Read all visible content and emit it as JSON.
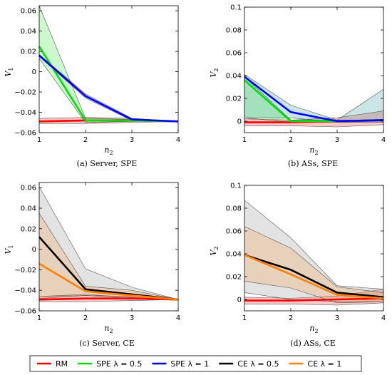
{
  "chart_data": [
    {
      "type": "line",
      "caption": "(a) Server, SPE",
      "xlabel": "n2",
      "ylabel": "V1",
      "x": [
        1,
        2,
        3,
        4
      ],
      "xticks": [
        "1",
        "2",
        "3",
        "4"
      ],
      "ylim": [
        -0.06,
        0.065
      ],
      "yticks": [
        -0.06,
        -0.04,
        -0.02,
        0,
        0.02,
        0.04,
        0.06
      ],
      "ytick_labels": [
        "−0.06",
        "−0.04",
        "−0.02",
        "0",
        "0.02",
        "0.04",
        "0.06"
      ],
      "series": [
        {
          "name": "RM",
          "color": "#ff0000",
          "values": [
            -0.049,
            -0.048,
            -0.048,
            -0.049
          ],
          "band": {
            "upper": [
              -0.046,
              -0.045,
              -0.046,
              -0.049
            ],
            "lower": [
              -0.051,
              -0.051,
              -0.05,
              -0.049
            ],
            "fill": "#ff0000",
            "opacity": 0.22
          }
        },
        {
          "name": "SPE λ = 0.5",
          "color": "#00e000",
          "values": [
            0.025,
            -0.048,
            -0.048,
            -0.049
          ],
          "band": {
            "upper": [
              0.065,
              -0.046,
              -0.047,
              -0.049
            ],
            "lower": [
              0.013,
              -0.05,
              -0.049,
              -0.049
            ],
            "fill": "#00e000",
            "opacity": 0.2
          }
        },
        {
          "name": "SPE λ = 1",
          "color": "#0000ff",
          "values": [
            0.016,
            -0.024,
            -0.047,
            -0.049
          ],
          "band": {
            "upper": [
              0.017,
              -0.022,
              -0.046,
              -0.049
            ],
            "lower": [
              0.015,
              -0.026,
              -0.048,
              -0.049
            ],
            "fill": "#0000ff",
            "opacity": 0.2
          }
        }
      ]
    },
    {
      "type": "line",
      "caption": "(b) ASs, SPE",
      "xlabel": "n2",
      "ylabel": "V2",
      "x": [
        1,
        2,
        3,
        4
      ],
      "xticks": [
        "1",
        "2",
        "3",
        "4"
      ],
      "ylim": [
        -0.01,
        0.1
      ],
      "yticks": [
        0,
        0.02,
        0.04,
        0.06,
        0.08,
        0.1
      ],
      "ytick_labels": [
        "0",
        "0.02",
        "0.04",
        "0.06",
        "0.08",
        "0.1"
      ],
      "series": [
        {
          "name": "RM",
          "color": "#ff0000",
          "values": [
            -0.001,
            -0.001,
            0.0,
            0.001
          ],
          "band": {
            "upper": [
              0.002,
              0.001,
              0.003,
              0.009
            ],
            "lower": [
              -0.004,
              -0.004,
              -0.005,
              -0.003
            ],
            "fill": "#ff0000",
            "opacity": 0.22
          }
        },
        {
          "name": "SPE λ = 0.5",
          "color": "#00e000",
          "values": [
            0.036,
            0.0,
            0.0,
            0.001
          ],
          "band": {
            "upper": [
              0.039,
              0.001,
              0.001,
              0.001
            ],
            "lower": [
              0.003,
              -0.001,
              -0.001,
              0.0
            ],
            "fill": "#00e000",
            "opacity": 0.2
          }
        },
        {
          "name": "SPE λ = 1",
          "color": "#0000ff",
          "values": [
            0.039,
            0.008,
            0.0,
            0.001
          ],
          "band": {
            "upper": [
              0.041,
              0.014,
              0.001,
              0.028
            ],
            "lower": [
              0.003,
              0.003,
              -0.001,
              -0.001
            ],
            "fill": "#0e8a8f",
            "opacity": 0.22
          }
        }
      ]
    },
    {
      "type": "line",
      "caption": "(c) Server, CE",
      "xlabel": "n2",
      "ylabel": "V1",
      "x": [
        1,
        2,
        3,
        4
      ],
      "xticks": [
        "1",
        "2",
        "3",
        "4"
      ],
      "ylim": [
        -0.06,
        0.065
      ],
      "yticks": [
        -0.06,
        -0.04,
        -0.02,
        0,
        0.02,
        0.04,
        0.06
      ],
      "ytick_labels": [
        "−0.06",
        "−0.04",
        "−0.02",
        "0",
        "0.02",
        "0.04",
        "0.06"
      ],
      "series": [
        {
          "name": "RM",
          "color": "#ff0000",
          "values": [
            -0.049,
            -0.048,
            -0.048,
            -0.049
          ],
          "band": {
            "upper": [
              -0.046,
              -0.045,
              -0.046,
              -0.049
            ],
            "lower": [
              -0.051,
              -0.051,
              -0.05,
              -0.049
            ],
            "fill": "#ff0000",
            "opacity": 0.22
          }
        },
        {
          "name": "CE λ = 0.5",
          "color": "#000000",
          "values": [
            0.012,
            -0.039,
            -0.044,
            -0.049
          ],
          "band": {
            "upper": [
              0.061,
              -0.019,
              -0.037,
              -0.049
            ],
            "lower": [
              -0.046,
              -0.044,
              -0.047,
              -0.049
            ],
            "fill": "#b0b0b0",
            "opacity": 0.35
          }
        },
        {
          "name": "CE λ = 1",
          "color": "#ff8000",
          "values": [
            -0.014,
            -0.041,
            -0.045,
            -0.049
          ],
          "band": {
            "upper": [
              0.035,
              -0.036,
              -0.04,
              -0.049
            ],
            "lower": [
              -0.048,
              -0.045,
              -0.048,
              -0.049
            ],
            "fill": "#ff8000",
            "opacity": 0.18
          }
        }
      ]
    },
    {
      "type": "line",
      "caption": "(d) ASs, CE",
      "xlabel": "n2",
      "ylabel": "V2",
      "x": [
        1,
        2,
        3,
        4
      ],
      "xticks": [
        "1",
        "2",
        "3",
        "4"
      ],
      "ylim": [
        -0.01,
        0.1
      ],
      "yticks": [
        0,
        0.02,
        0.04,
        0.06,
        0.08,
        0.1
      ],
      "ytick_labels": [
        "0",
        "0.02",
        "0.04",
        "0.06",
        "0.08",
        "0.1"
      ],
      "series": [
        {
          "name": "RM",
          "color": "#ff0000",
          "values": [
            -0.001,
            -0.001,
            0.0,
            0.001
          ],
          "band": {
            "upper": [
              0.002,
              0.001,
              0.003,
              0.009
            ],
            "lower": [
              -0.004,
              -0.004,
              -0.005,
              -0.003
            ],
            "fill": "#ff0000",
            "opacity": 0.22
          }
        },
        {
          "name": "CE λ = 0.5",
          "color": "#000000",
          "values": [
            0.039,
            0.026,
            0.006,
            0.002
          ],
          "band": {
            "upper": [
              0.087,
              0.054,
              0.012,
              0.009
            ],
            "lower": [
              0.006,
              0.0,
              -0.002,
              -0.002
            ],
            "fill": "#b0b0b0",
            "opacity": 0.35
          }
        },
        {
          "name": "CE λ = 1",
          "color": "#ff8000",
          "values": [
            0.039,
            0.022,
            0.004,
            0.001
          ],
          "band": {
            "upper": [
              0.064,
              0.045,
              0.011,
              0.006
            ],
            "lower": [
              0.016,
              0.01,
              -0.003,
              -0.002
            ],
            "fill": "#ff8000",
            "opacity": 0.18
          }
        }
      ]
    }
  ],
  "legend": [
    {
      "label": "RM",
      "color": "#ff0000"
    },
    {
      "label": "SPE λ = 0.5",
      "color": "#00e000"
    },
    {
      "label": "SPE λ = 1",
      "color": "#0000ff"
    },
    {
      "label": "CE λ = 0.5",
      "color": "#000000"
    },
    {
      "label": "CE λ = 1",
      "color": "#ff8000"
    }
  ]
}
